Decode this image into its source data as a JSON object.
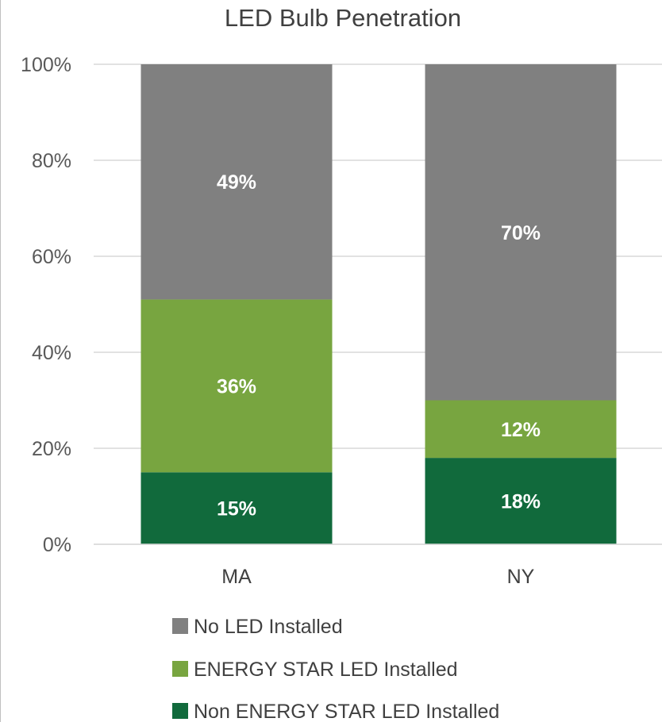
{
  "chart_data": {
    "type": "bar",
    "stacked": true,
    "title": "LED Bulb Penetration",
    "categories": [
      "MA",
      "NY"
    ],
    "series": [
      {
        "name": "Non ENERGY STAR LED Installed",
        "values": [
          15,
          18
        ],
        "labels": [
          "15%",
          "18%"
        ],
        "color": "#116a3c"
      },
      {
        "name": "ENERGY STAR LED Installed",
        "values": [
          36,
          12
        ],
        "labels": [
          "36%",
          "12%"
        ],
        "color": "#78a540"
      },
      {
        "name": "No LED Installed",
        "values": [
          49,
          70
        ],
        "labels": [
          "49%",
          "70%"
        ],
        "color": "#808080"
      }
    ],
    "ylim": [
      0,
      100
    ],
    "yticks": [
      0,
      20,
      40,
      60,
      80,
      100
    ],
    "ytick_labels": [
      "0%",
      "20%",
      "40%",
      "60%",
      "80%",
      "100%"
    ],
    "grid": true,
    "legend_position": "bottom",
    "legend_order": [
      "No LED Installed",
      "ENERGY STAR LED Installed",
      "Non ENERGY STAR LED Installed"
    ],
    "xlabel": "",
    "ylabel": ""
  }
}
